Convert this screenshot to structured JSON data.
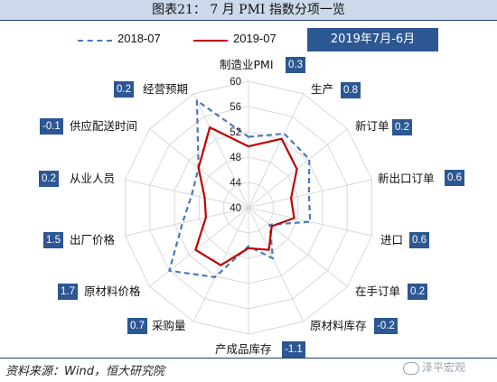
{
  "figure": {
    "caption": "图表21：  7 月 PMI 指数分项一览",
    "period_label": "2019年7月-6月",
    "source": "资料来源：Wind，恒大研究院",
    "watermark": "泽平宏观"
  },
  "colors": {
    "series_2018": "#4a79b8",
    "series_2019": "#c00000",
    "value_box": "#2c5793",
    "title_bar": "#cbd9ea",
    "grid": "#d9d9d9"
  },
  "chart_data": {
    "type": "radar",
    "title": "",
    "r_range": [
      40,
      60
    ],
    "r_ticks": [
      "40",
      "44",
      "48",
      "52",
      "56",
      "60"
    ],
    "grid": true,
    "legend_position": "top",
    "categories": [
      "制造业PMI",
      "生产",
      "新订单",
      "新出口订单",
      "进口",
      "在手订单",
      "原材料库存",
      "产成品库存",
      "采购量",
      "原材料价格",
      "出厂价格",
      "从业人员",
      "供应配送时间",
      "经营预期"
    ],
    "series": [
      {
        "name": "2018-07",
        "values": [
          51.2,
          53.0,
          52.3,
          49.8,
          50.0,
          44.3,
          48.9,
          46.1,
          52.2,
          56.0,
          50.7,
          49.2,
          50.1,
          58.8
        ]
      },
      {
        "name": "2019-07",
        "values": [
          49.7,
          52.1,
          49.8,
          46.9,
          47.4,
          44.7,
          47.4,
          46.4,
          50.1,
          50.7,
          46.9,
          47.1,
          50.1,
          54.1
        ]
      }
    ],
    "difference_labels": [
      "0.3",
      "0.8",
      "0.2",
      "0.6",
      "0.6",
      "0.2",
      "-0.2",
      "-1.1",
      "0.7",
      "1.7",
      "1.5",
      "0.2",
      "-0.1",
      "0.2"
    ]
  }
}
